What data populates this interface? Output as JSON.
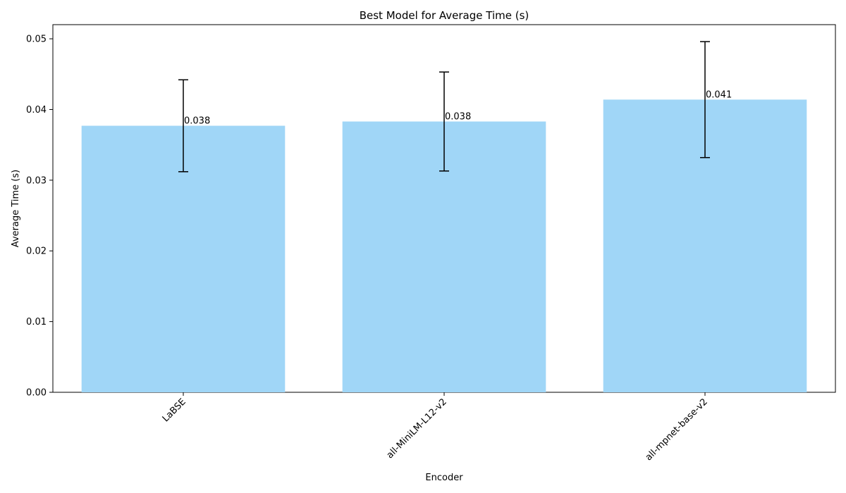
{
  "chart_data": {
    "type": "bar",
    "title": "Best Model for Average Time (s)",
    "xlabel": "Encoder",
    "ylabel": "Average Time (s)",
    "categories": [
      "LaBSE",
      "all-MiniLM-L12-v2",
      "all-mpnet-base-v2"
    ],
    "values": [
      0.0377,
      0.0383,
      0.0414
    ],
    "error": [
      0.0065,
      0.007,
      0.0082
    ],
    "data_labels": [
      "0.038",
      "0.038",
      "0.041"
    ],
    "ylim": [
      0,
      0.052
    ],
    "yticks": [
      0.0,
      0.01,
      0.02,
      0.03,
      0.04,
      0.05
    ],
    "ytick_labels": [
      "0.00",
      "0.01",
      "0.02",
      "0.03",
      "0.04",
      "0.05"
    ],
    "grid": false,
    "bar_color": "#a0d6f7",
    "error_color": "#000000"
  }
}
